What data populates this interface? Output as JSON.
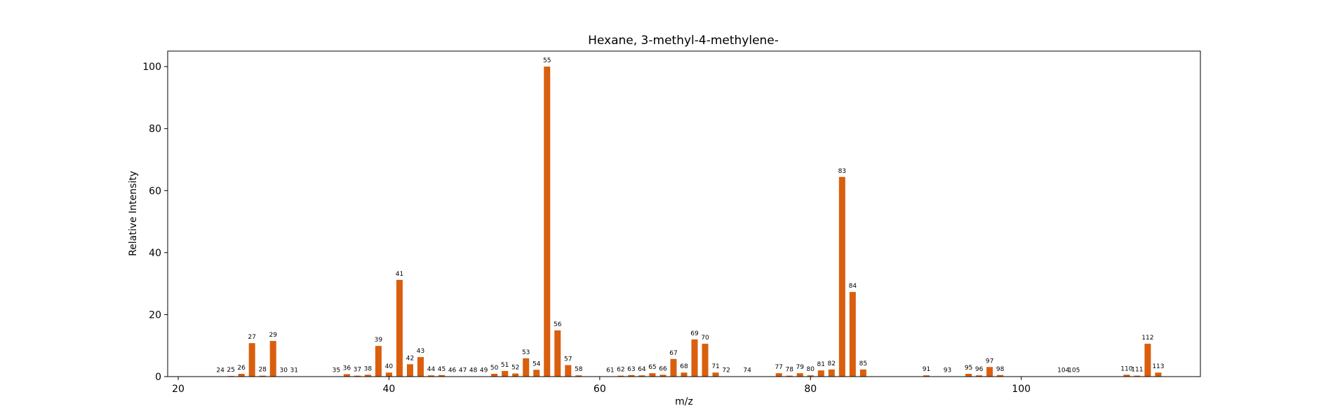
{
  "chart_data": {
    "type": "bar",
    "title": "Hexane, 3-methyl-4-methylene-",
    "xlabel": "m/z",
    "ylabel": "Relative Intensity",
    "xlim": [
      19,
      117
    ],
    "ylim": [
      0,
      105
    ],
    "xticks": [
      20,
      40,
      60,
      80,
      100
    ],
    "yticks": [
      0,
      20,
      40,
      60,
      80,
      100
    ],
    "bar_color": "#d95f0e",
    "grid": false,
    "x": [
      24,
      25,
      26,
      27,
      28,
      29,
      30,
      31,
      35,
      36,
      37,
      38,
      39,
      40,
      41,
      42,
      43,
      44,
      45,
      46,
      47,
      48,
      49,
      50,
      51,
      52,
      53,
      54,
      55,
      56,
      57,
      58,
      61,
      62,
      63,
      64,
      65,
      66,
      67,
      68,
      69,
      70,
      71,
      72,
      74,
      77,
      78,
      79,
      80,
      81,
      82,
      83,
      84,
      85,
      91,
      93,
      95,
      96,
      97,
      98,
      104,
      105,
      110,
      111,
      112,
      113
    ],
    "values": [
      0.1,
      0.2,
      0.9,
      10.8,
      0.3,
      11.5,
      0.1,
      0.1,
      0.1,
      0.8,
      0.3,
      0.6,
      9.9,
      1.3,
      31.2,
      4.0,
      6.3,
      0.4,
      0.5,
      0.1,
      0.1,
      0.1,
      0.1,
      0.9,
      1.8,
      1.0,
      5.9,
      2.2,
      100,
      14.9,
      3.7,
      0.4,
      0.1,
      0.3,
      0.5,
      0.4,
      1.1,
      0.6,
      5.7,
      1.3,
      12.0,
      10.6,
      1.3,
      0.1,
      0.1,
      1.1,
      0.3,
      1.1,
      0.4,
      2.0,
      2.3,
      64.4,
      27.3,
      2.3,
      0.4,
      0.1,
      0.9,
      0.4,
      3.1,
      0.5,
      0.1,
      0.1,
      0.6,
      0.3,
      10.6,
      1.3
    ]
  }
}
